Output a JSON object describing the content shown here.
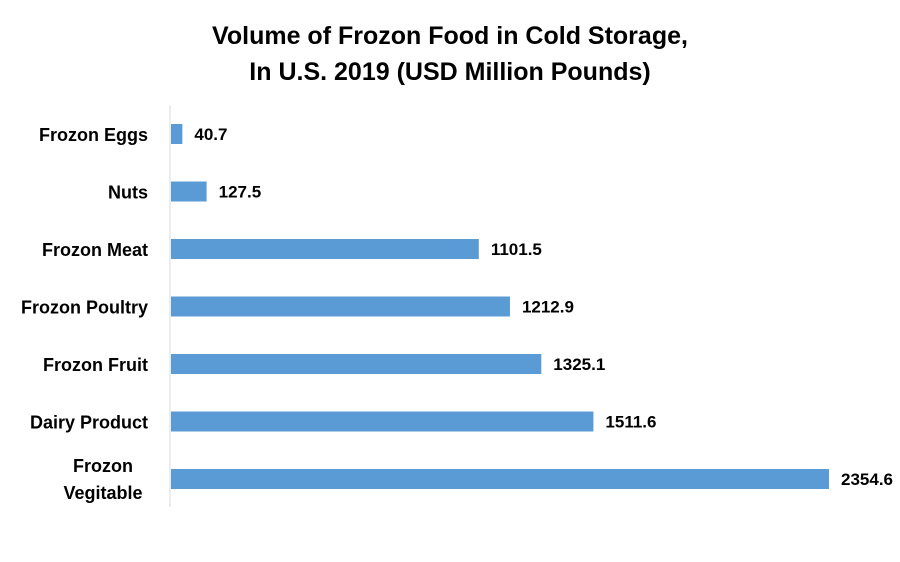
{
  "chart_data": {
    "type": "bar",
    "orientation": "horizontal",
    "title": "Volume of Frozon Food in Cold Storage,",
    "subtitle": "In U.S. 2019 (USD Million Pounds)",
    "categories": [
      "Frozon Eggs",
      "Nuts",
      "Frozon Meat",
      "Frozon Poultry",
      "Frozon Fruit",
      "Dairy Product",
      "Frozon Vegitable"
    ],
    "values": [
      40.7,
      127.5,
      1101.5,
      1212.9,
      1325.1,
      1511.6,
      2354.6
    ],
    "data_labels": [
      "40.7",
      "127.5",
      "1101.5",
      "1212.9",
      "1325.1",
      "1511.6",
      "2354.6"
    ],
    "bar_color": "#5B9BD5",
    "xlim": [
      0,
      2354.6
    ],
    "grid": false,
    "legend": "none"
  }
}
